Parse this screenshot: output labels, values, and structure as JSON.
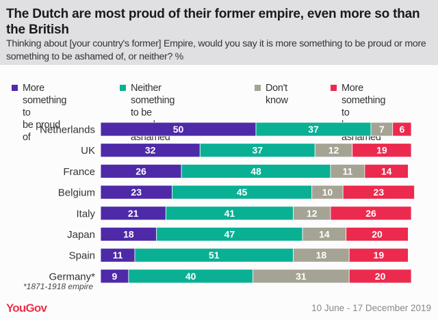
{
  "header": {
    "title": "The Dutch are most proud of their former empire, even more so than the British",
    "subtitle": "Thinking about [your country's former] Empire, would you say it is more something to be proud or more something to be ashamed of, or neither? %"
  },
  "footer": {
    "logo": "YouGov",
    "date": "10 June - 17 December 2019",
    "footnote": "*1871-1918 empire"
  },
  "chart_data": {
    "type": "bar",
    "orientation": "horizontal",
    "stacked": true,
    "title": "The Dutch are most proud of their former empire, even more so than the British",
    "subtitle": "Thinking about [your country's former] Empire, would you say it is more something to be proud or more something to be ashamed of, or neither? %",
    "xlabel": "",
    "ylabel": "",
    "xlim": [
      0,
      100
    ],
    "grid": false,
    "legend_position": "top",
    "categories": [
      "Netherlands",
      "UK",
      "France",
      "Belgium",
      "Italy",
      "Japan",
      "Spain",
      "Germany*"
    ],
    "series": [
      {
        "name": "More something to\nbe proud of",
        "color": "#4e2aa8",
        "values": [
          50,
          32,
          26,
          23,
          21,
          18,
          11,
          9
        ]
      },
      {
        "name": "Neither something to be\nproud nor ashamed of",
        "color": "#0ab094",
        "values": [
          37,
          37,
          48,
          45,
          41,
          47,
          51,
          40
        ]
      },
      {
        "name": "Don't know",
        "color": "#a5a394",
        "values": [
          7,
          12,
          11,
          10,
          12,
          14,
          18,
          31
        ]
      },
      {
        "name": "More something to\nbe ashamed of",
        "color": "#ec2a4e",
        "values": [
          6,
          19,
          14,
          23,
          26,
          20,
          19,
          20
        ]
      }
    ]
  }
}
